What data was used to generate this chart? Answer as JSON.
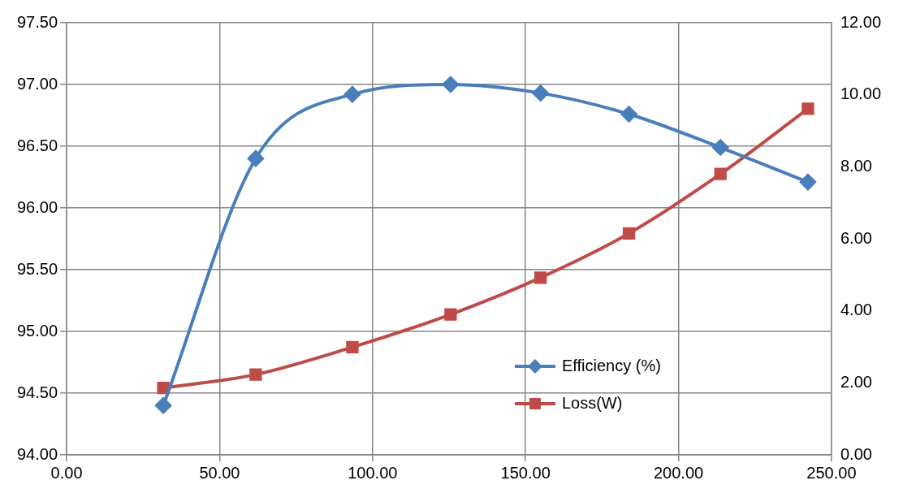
{
  "chart_data": {
    "type": "line",
    "series": [
      {
        "name": "Efficiency (%)",
        "color": "#4a7ebb",
        "marker": "diamond",
        "x": [
          31.6,
          61.8,
          93.4,
          125.5,
          154.9,
          183.8,
          213.7,
          242.3
        ],
        "values": [
          94.4,
          96.4,
          96.92,
          97.0,
          96.93,
          96.76,
          96.49,
          96.21
        ]
      },
      {
        "name": "Loss(W)",
        "color": "#be4b48",
        "marker": "square",
        "axis": "y2",
        "x": [
          31.6,
          61.8,
          93.4,
          125.5,
          154.9,
          183.8,
          213.7,
          242.3
        ],
        "values": [
          1.86,
          2.23,
          2.99,
          3.9,
          4.92,
          6.15,
          7.8,
          9.61
        ]
      }
    ],
    "xlim": [
      0,
      250
    ],
    "xticks": [
      {
        "value": 0,
        "label": "0.00"
      },
      {
        "value": 50,
        "label": "50.00"
      },
      {
        "value": 100,
        "label": "100.00"
      },
      {
        "value": 150,
        "label": "150.00"
      },
      {
        "value": 200,
        "label": "200.00"
      },
      {
        "value": 250,
        "label": "250.00"
      }
    ],
    "ylim": [
      94,
      97.5
    ],
    "yticks": [
      {
        "value": 94,
        "label": "94.00"
      },
      {
        "value": 94.5,
        "label": "94.50"
      },
      {
        "value": 95,
        "label": "95.00"
      },
      {
        "value": 95.5,
        "label": "95.50"
      },
      {
        "value": 96,
        "label": "96.00"
      },
      {
        "value": 96.5,
        "label": "96.50"
      },
      {
        "value": 97,
        "label": "97.00"
      },
      {
        "value": 97.5,
        "label": "97.50"
      }
    ],
    "y2lim": [
      0,
      12
    ],
    "y2ticks": [
      {
        "value": 0,
        "label": "0.00"
      },
      {
        "value": 2,
        "label": "2.00"
      },
      {
        "value": 4,
        "label": "4.00"
      },
      {
        "value": 6,
        "label": "6.00"
      },
      {
        "value": 8,
        "label": "8.00"
      },
      {
        "value": 10,
        "label": "10.00"
      },
      {
        "value": 12,
        "label": "12.00"
      }
    ],
    "grid": true,
    "legend": "bottom right"
  }
}
